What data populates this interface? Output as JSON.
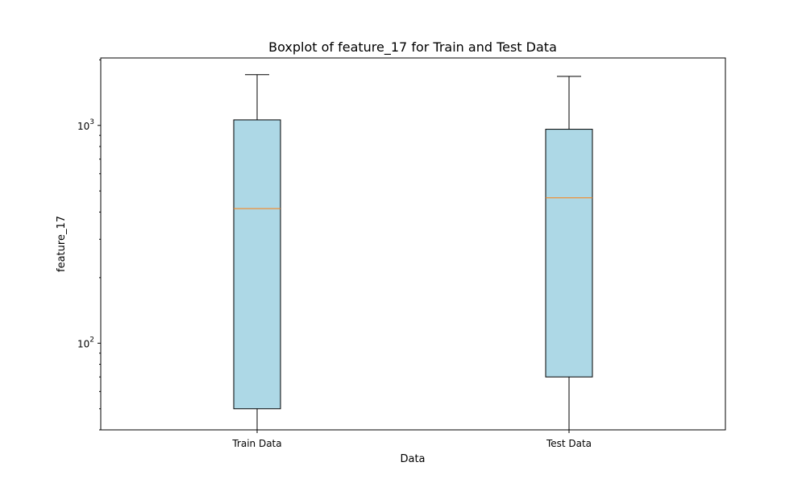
{
  "chart_data": {
    "type": "boxplot",
    "title": "Boxplot of feature_17 for Train and Test Data",
    "xlabel": "Data",
    "ylabel": "feature_17",
    "yscale": "log",
    "ylim": [
      40,
      2040
    ],
    "grid": false,
    "y_ticks": [
      {
        "value": 100,
        "base": "10",
        "exp": "2"
      },
      {
        "value": 1000,
        "base": "10",
        "exp": "3"
      }
    ],
    "categories": [
      "Train Data",
      "Test Data"
    ],
    "boxes": [
      {
        "label": "Train Data",
        "whisker_low": 40,
        "q1": 50,
        "median": 415,
        "q3": 1060,
        "whisker_high": 1710
      },
      {
        "label": "Test Data",
        "whisker_low": 40,
        "q1": 70,
        "median": 465,
        "q3": 960,
        "whisker_high": 1680
      }
    ],
    "colors": {
      "box_fill": "#add8e6",
      "median": "#ff7f0e",
      "lines": "#000000"
    }
  }
}
